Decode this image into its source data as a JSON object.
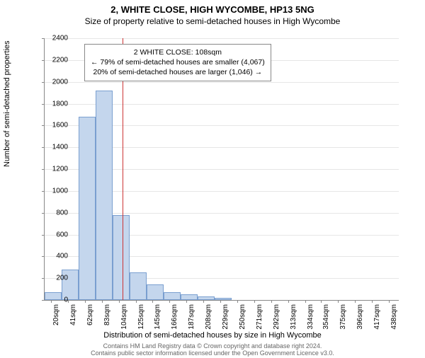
{
  "chart": {
    "type": "histogram",
    "title": "2, WHITE CLOSE, HIGH WYCOMBE, HP13 5NG",
    "subtitle": "Size of property relative to semi-detached houses in High Wycombe",
    "xlabel": "Distribution of semi-detached houses by size in High Wycombe",
    "ylabel": "Number of semi-detached properties",
    "footer_text1": "Contains HM Land Registry data © Crown copyright and database right 2024.",
    "footer_text2": "Contains public sector information licensed under the Open Government Licence v3.0.",
    "background_color": "#ffffff",
    "grid_color": "#e6e6e6",
    "axis_color": "#888888",
    "title_fontsize": 13,
    "subtitle_fontsize": 12,
    "label_fontsize": 11,
    "tick_fontsize": 10,
    "footer_fontsize": 9,
    "ylim": [
      0,
      2400
    ],
    "ytick_step": 200,
    "yticks": [
      0,
      200,
      400,
      600,
      800,
      1000,
      1200,
      1400,
      1600,
      1800,
      2000,
      2200,
      2400
    ],
    "xticks": [
      "20sqm",
      "41sqm",
      "62sqm",
      "83sqm",
      "104sqm",
      "125sqm",
      "145sqm",
      "166sqm",
      "187sqm",
      "208sqm",
      "229sqm",
      "250sqm",
      "271sqm",
      "292sqm",
      "313sqm",
      "334sqm",
      "354sqm",
      "375sqm",
      "396sqm",
      "417sqm",
      "438sqm"
    ],
    "xtick_values": [
      20,
      41,
      62,
      83,
      104,
      125,
      145,
      166,
      187,
      208,
      229,
      250,
      271,
      292,
      313,
      334,
      354,
      375,
      396,
      417,
      438
    ],
    "x_range": [
      12,
      450
    ],
    "bars": [
      {
        "x0": 12,
        "x1": 33,
        "value": 70
      },
      {
        "x0": 33,
        "x1": 54,
        "value": 280
      },
      {
        "x0": 54,
        "x1": 75,
        "value": 1680
      },
      {
        "x0": 75,
        "x1": 96,
        "value": 1920
      },
      {
        "x0": 96,
        "x1": 117,
        "value": 780
      },
      {
        "x0": 117,
        "x1": 138,
        "value": 250
      },
      {
        "x0": 138,
        "x1": 159,
        "value": 140
      },
      {
        "x0": 159,
        "x1": 180,
        "value": 70
      },
      {
        "x0": 180,
        "x1": 201,
        "value": 50
      },
      {
        "x0": 201,
        "x1": 222,
        "value": 30
      },
      {
        "x0": 222,
        "x1": 243,
        "value": 20
      },
      {
        "x0": 243,
        "x1": 264,
        "value": 0
      },
      {
        "x0": 264,
        "x1": 285,
        "value": 0
      },
      {
        "x0": 285,
        "x1": 306,
        "value": 0
      },
      {
        "x0": 306,
        "x1": 327,
        "value": 0
      }
    ],
    "bar_fill_color": "#c4d6ed",
    "bar_border_color": "#7a9fd0",
    "marker": {
      "x_value": 108,
      "color": "#cc3333"
    },
    "annotation": {
      "line1": "2 WHITE CLOSE: 108sqm",
      "line2": "← 79% of semi-detached houses are smaller (4,067)",
      "line3": "20% of semi-detached houses are larger (1,046) →",
      "border_color": "#888888",
      "background_color": "#ffffff",
      "fontsize": 10.5
    }
  }
}
